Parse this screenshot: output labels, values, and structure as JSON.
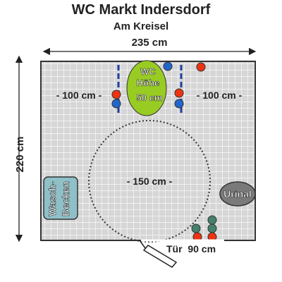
{
  "header": {
    "title": "WC Markt Indersdorf",
    "subtitle": "Am Kreisel"
  },
  "dimensions": {
    "width_label": "235 cm",
    "height_label": "220 cm",
    "left_clearance": "- 100 cm -",
    "right_clearance": "- 100 cm -",
    "turning_circle": "- 150 cm -",
    "door": "Tür  90 cm"
  },
  "fixtures": {
    "toilet_line1": "WC",
    "toilet_line2": "Höhe",
    "toilet_line3": "50 cm",
    "urinal": "Urinal",
    "sink_line1": "Wasch-",
    "sink_line2": "Becken"
  },
  "colors": {
    "toilet_fill": "#99cc22",
    "grab_bar_color": "#1f3f9f",
    "marker_red": "#ee3311",
    "marker_blue": "#2266cc",
    "marker_green": "#44806a",
    "urinal_fill": "#7a7a7a",
    "sink_fill": "#8fc0c7",
    "room_fill": "#d6d6d6"
  },
  "icons": {
    "marker": "circle",
    "door": "door-swing-icon"
  }
}
